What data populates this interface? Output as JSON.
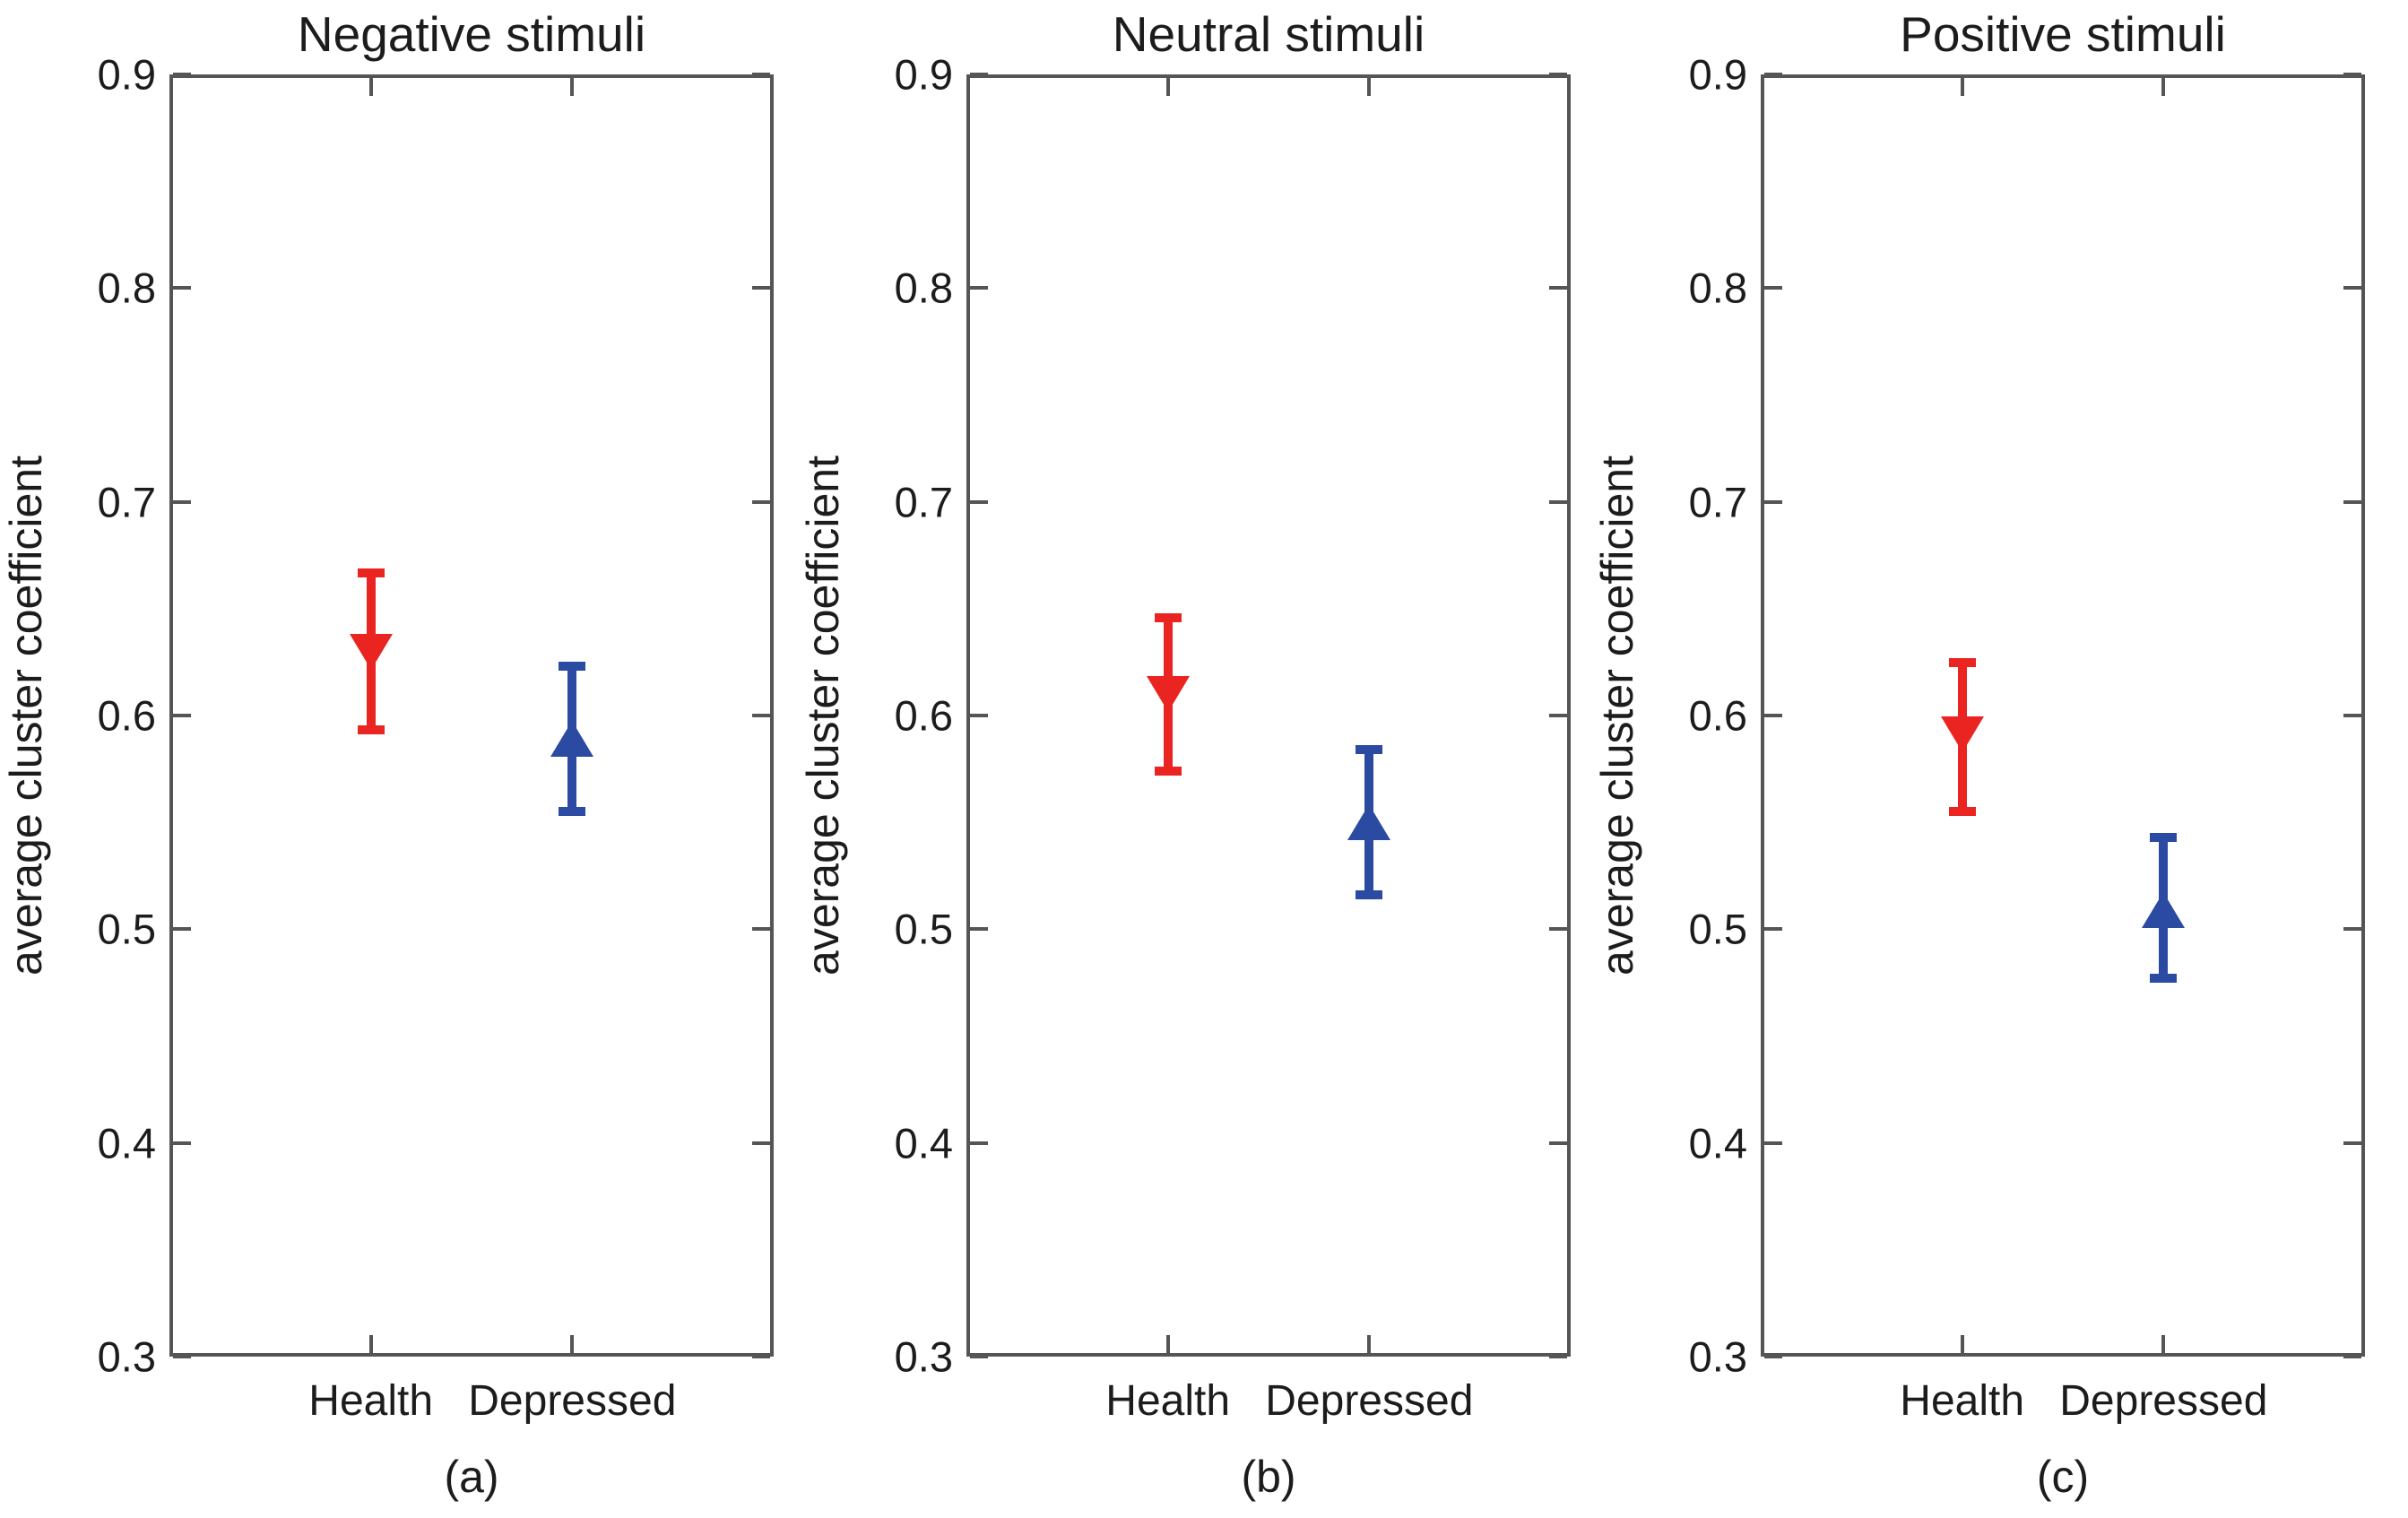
{
  "figure": {
    "background": "#ffffff",
    "axis_color": "#555555",
    "text_color": "#1c1c1c",
    "health_color": "#ea2420",
    "depressed_color": "#2b4aa2"
  },
  "chart_data": [
    {
      "type": "scatter",
      "title": "Negative stimuli",
      "panel_label": "(a)",
      "ylabel": "average cluster coefficient",
      "categories": [
        "Health",
        "Depressed"
      ],
      "ylim": [
        0.3,
        0.9
      ],
      "yticks": [
        0.9,
        0.8,
        0.7,
        0.6,
        0.5,
        0.4,
        0.3
      ],
      "grid": false,
      "legend": "none",
      "series": [
        {
          "name": "Health",
          "marker": "triangle-down",
          "color": "#ea2420",
          "mean": 0.63,
          "ci_low": 0.591,
          "ci_high": 0.669
        },
        {
          "name": "Depressed",
          "marker": "triangle-up",
          "color": "#2b4aa2",
          "mean": 0.589,
          "ci_low": 0.553,
          "ci_high": 0.625
        }
      ]
    },
    {
      "type": "scatter",
      "title": "Neutral stimuli",
      "panel_label": "(b)",
      "ylabel": "average cluster coefficient",
      "categories": [
        "Health",
        "Depressed"
      ],
      "ylim": [
        0.3,
        0.9
      ],
      "yticks": [
        0.9,
        0.8,
        0.7,
        0.6,
        0.5,
        0.4,
        0.3
      ],
      "grid": false,
      "legend": "none",
      "series": [
        {
          "name": "Health",
          "marker": "triangle-down",
          "color": "#ea2420",
          "mean": 0.61,
          "ci_low": 0.572,
          "ci_high": 0.648
        },
        {
          "name": "Depressed",
          "marker": "triangle-up",
          "color": "#2b4aa2",
          "mean": 0.55,
          "ci_low": 0.514,
          "ci_high": 0.586
        }
      ]
    },
    {
      "type": "scatter",
      "title": "Positive stimuli",
      "panel_label": "(c)",
      "ylabel": "average cluster coefficient",
      "categories": [
        "Health",
        "Depressed"
      ],
      "ylim": [
        0.3,
        0.9
      ],
      "yticks": [
        0.9,
        0.8,
        0.7,
        0.6,
        0.5,
        0.4,
        0.3
      ],
      "grid": false,
      "legend": "none",
      "series": [
        {
          "name": "Health",
          "marker": "triangle-down",
          "color": "#ea2420",
          "mean": 0.591,
          "ci_low": 0.553,
          "ci_high": 0.627
        },
        {
          "name": "Depressed",
          "marker": "triangle-up",
          "color": "#2b4aa2",
          "mean": 0.509,
          "ci_low": 0.475,
          "ci_high": 0.545
        }
      ]
    }
  ]
}
